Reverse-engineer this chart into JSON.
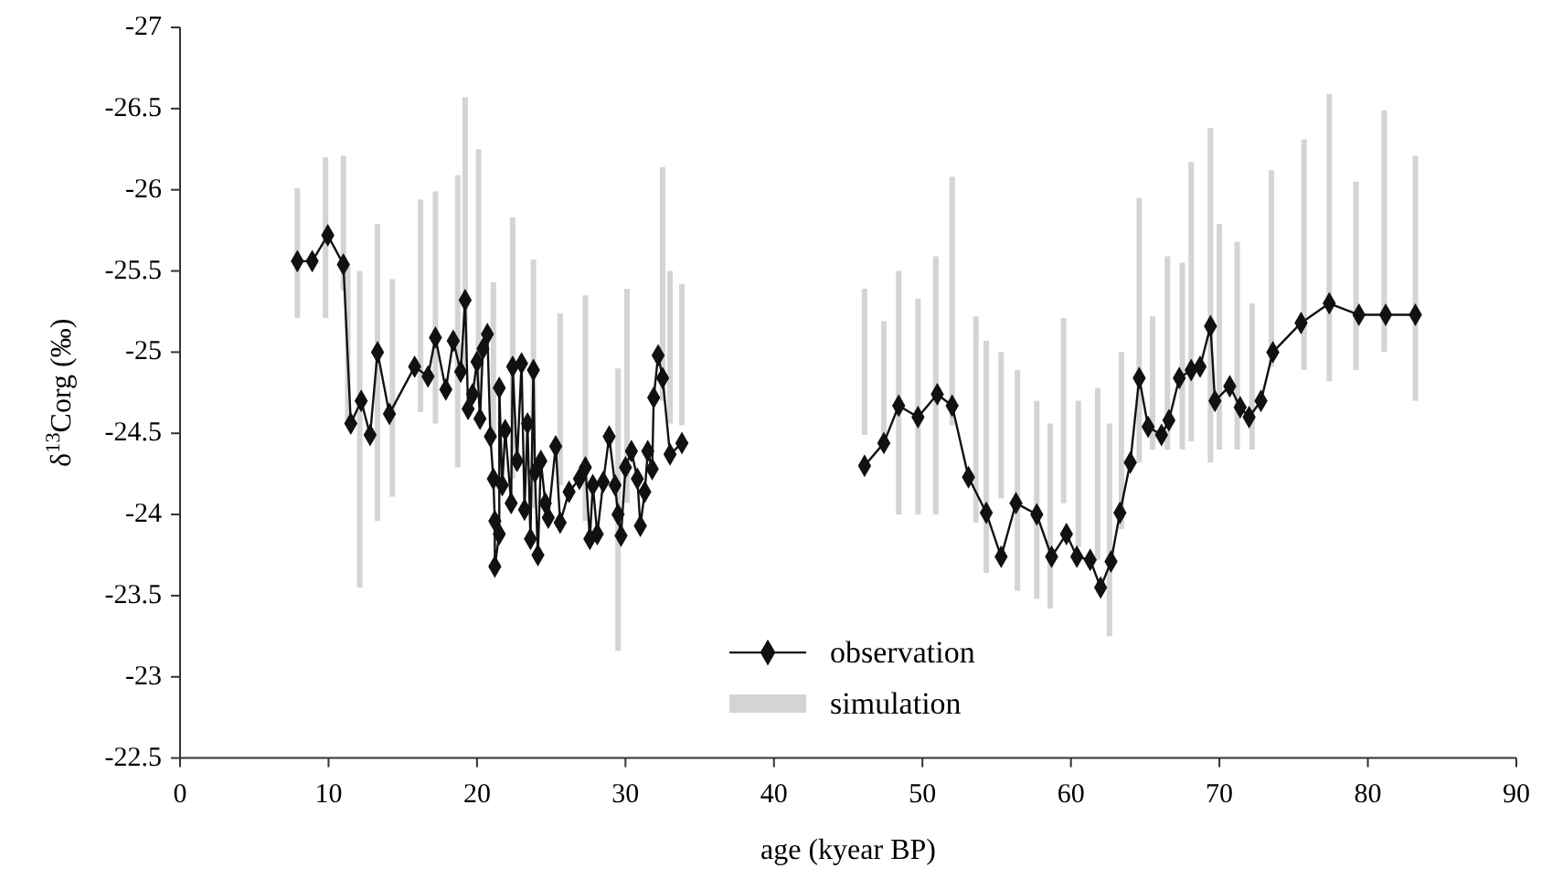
{
  "chart_data": {
    "type": "line",
    "xlabel": "age (kyear BP)",
    "ylabel": "δ$^{13}$Corg (‰)",
    "xlim": [
      0,
      90
    ],
    "xticks": [
      0,
      10,
      20,
      30,
      40,
      50,
      60,
      70,
      80,
      90
    ],
    "ylim": [
      -22.5,
      -27
    ],
    "yticks": [
      -27,
      -26.5,
      -26,
      -25.5,
      -25,
      -24.5,
      -24,
      -23.5,
      -23,
      -22.5
    ],
    "legend": "bottom",
    "grid": false,
    "series": [
      {
        "name": "simulation",
        "type": "bar",
        "color": "#d4d4d4",
        "x": [
          7.9,
          9.8,
          11.0,
          11.3,
          12.1,
          13.3,
          14.3,
          16.2,
          17.2,
          18.7,
          19.2,
          20.1,
          21.1,
          22.4,
          23.8,
          25.6,
          27.3,
          29.5,
          30.1,
          32.5,
          33.0,
          33.8,
          46.1,
          47.4,
          48.4,
          49.7,
          50.9,
          52.0,
          53.6,
          54.3,
          55.3,
          56.4,
          57.7,
          58.6,
          59.5,
          60.5,
          61.8,
          62.6,
          63.4,
          64.6,
          65.5,
          66.5,
          67.5,
          68.1,
          69.4,
          70.0,
          71.2,
          72.2,
          73.5,
          75.7,
          77.4,
          79.2,
          81.1,
          83.2
        ],
        "base": [
          -26.01,
          -26.2,
          -26.21,
          -25.53,
          -25.5,
          -25.79,
          -25.45,
          -25.94,
          -25.99,
          -26.09,
          -26.57,
          -26.25,
          -25.43,
          -25.83,
          -25.57,
          -25.24,
          -25.35,
          -24.9,
          -25.39,
          -26.14,
          -25.5,
          -25.42,
          -25.39,
          -25.19,
          -25.5,
          -25.33,
          -25.59,
          -26.08,
          -25.22,
          -25.07,
          -25.0,
          -24.89,
          -24.7,
          -24.56,
          -25.21,
          -24.7,
          -24.78,
          -24.56,
          -25.0,
          -25.95,
          -25.22,
          -25.59,
          -25.55,
          -26.17,
          -26.38,
          -25.79,
          -25.68,
          -25.3,
          -26.12,
          -26.31,
          -26.59,
          -26.05,
          -26.49,
          -26.21
        ],
        "values": [
          0.8,
          0.99,
          0.83,
          0.97,
          1.95,
          1.83,
          1.34,
          1.31,
          1.43,
          1.8,
          1.66,
          1.47,
          0.95,
          1.61,
          1.53,
          1.06,
          1.39,
          1.74,
          1.32,
          1.44,
          0.94,
          0.87,
          0.9,
          0.7,
          1.5,
          1.33,
          1.59,
          1.53,
          1.27,
          1.43,
          0.9,
          1.36,
          1.22,
          1.14,
          1.14,
          0.9,
          1.06,
          1.31,
          1.09,
          1.63,
          0.82,
          1.19,
          1.15,
          1.72,
          2.06,
          1.39,
          1.28,
          0.9,
          1.21,
          1.42,
          1.77,
          1.16,
          1.49,
          1.51
        ]
      },
      {
        "name": "observation",
        "color": "#111111",
        "marker": "diamond",
        "x": [
          7.9,
          8.9,
          9.95,
          11.0,
          11.5,
          12.2,
          12.8,
          13.3,
          14.1,
          15.8,
          16.7,
          17.2,
          17.9,
          18.4,
          18.9,
          19.2,
          19.4,
          19.7,
          20.0,
          20.2,
          20.4,
          20.7,
          20.9,
          21.1,
          21.2,
          21.2,
          21.5,
          21.5,
          21.7,
          21.9,
          22.3,
          22.4,
          22.7,
          23.0,
          23.2,
          23.4,
          23.6,
          23.8,
          23.9,
          24.1,
          24.3,
          24.6,
          24.8,
          25.3,
          25.6,
          26.2,
          26.9,
          27.3,
          27.6,
          27.8,
          28.1,
          28.5,
          28.9,
          29.3,
          29.5,
          29.7,
          30.0,
          30.4,
          30.8,
          31.0,
          31.3,
          31.5,
          31.8,
          31.9,
          32.2,
          32.5,
          33.0,
          33.8,
          40,
          46.1,
          47.4,
          48.4,
          49.7,
          51.0,
          52.0,
          53.1,
          54.3,
          55.3,
          56.3,
          57.7,
          58.7,
          59.7,
          60.4,
          61.3,
          62.0,
          62.7,
          63.3,
          64.0,
          64.6,
          65.2,
          66.1,
          66.6,
          67.3,
          68.1,
          68.7,
          69.4,
          69.7,
          70.7,
          71.4,
          72.0,
          72.8,
          73.6,
          75.5,
          77.4,
          79.4,
          81.2,
          83.2
        ],
        "values": [
          -25.56,
          -25.56,
          -25.72,
          -25.54,
          -24.56,
          -24.7,
          -24.49,
          -25.0,
          -24.62,
          -24.91,
          -24.85,
          -25.09,
          -24.77,
          -25.07,
          -24.88,
          -25.32,
          -24.65,
          -24.74,
          -24.94,
          -24.59,
          -25.02,
          -25.11,
          -24.48,
          -24.22,
          -23.96,
          -23.68,
          -23.88,
          -24.78,
          -24.18,
          -24.52,
          -24.07,
          -24.91,
          -24.33,
          -24.93,
          -24.03,
          -24.56,
          -23.85,
          -24.89,
          -24.26,
          -23.75,
          -24.33,
          -24.07,
          -23.98,
          -24.42,
          -23.95,
          -24.14,
          -24.22,
          -24.29,
          -23.85,
          -24.18,
          -23.88,
          -24.2,
          -24.48,
          -24.18,
          -24.0,
          -23.87,
          -24.29,
          -24.39,
          -24.22,
          -23.93,
          -24.14,
          -24.39,
          -24.28,
          -24.72,
          -24.98,
          -24.84,
          -24.37,
          -24.44,
          null,
          -24.3,
          -24.44,
          -24.67,
          -24.6,
          -24.74,
          -24.67,
          -24.23,
          -24.01,
          -23.74,
          -24.07,
          -24.0,
          -23.74,
          -23.88,
          -23.74,
          -23.72,
          -23.55,
          -23.71,
          -24.01,
          -24.32,
          -24.84,
          -24.54,
          -24.49,
          -24.58,
          -24.84,
          -24.89,
          -24.91,
          -25.16,
          -24.7,
          -24.79,
          -24.66,
          -24.6,
          -24.7,
          -25.0,
          -25.18,
          -25.3,
          -25.23,
          -25.23,
          -25.23
        ]
      }
    ]
  }
}
